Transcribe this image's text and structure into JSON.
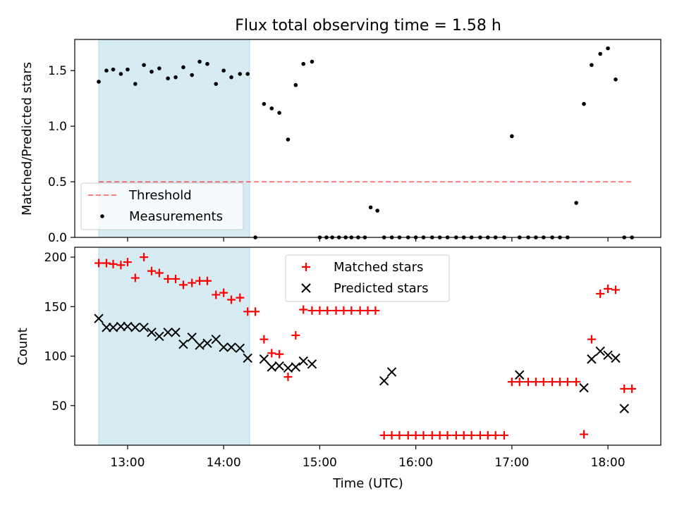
{
  "title": "Flux total observing time = 1.58 h",
  "colors": {
    "shade": "#add8e6",
    "threshold": "#ff0000",
    "matched": "#ff0000",
    "predicted": "#000000",
    "measurements": "#000000"
  },
  "chart_data": [
    {
      "type": "scatter",
      "ylabel": "Matched/Predicted stars",
      "xlim": [
        12.45,
        18.55
      ],
      "ylim": [
        0,
        1.78
      ],
      "yticks": [
        0.0,
        0.5,
        1.0,
        1.5
      ],
      "ytick_labels": [
        "0.0",
        "0.5",
        "1.0",
        "1.5"
      ],
      "xticks": [
        13,
        14,
        15,
        16,
        17,
        18
      ],
      "shaded_span": [
        12.7,
        14.27
      ],
      "legend": {
        "placement": "lower-left",
        "entries": [
          "Threshold",
          "Measurements"
        ]
      },
      "threshold": {
        "name": "Threshold",
        "x": [
          12.7,
          18.27
        ],
        "y": 0.5
      },
      "series": [
        {
          "name": "Measurements",
          "marker": "dot",
          "x": [
            12.7,
            12.78,
            12.85,
            12.93,
            13.0,
            13.08,
            13.17,
            13.25,
            13.33,
            13.42,
            13.5,
            13.58,
            13.67,
            13.75,
            13.83,
            13.92,
            14.0,
            14.08,
            14.17,
            14.25,
            14.33,
            14.42,
            14.5,
            14.58,
            14.67,
            14.75,
            14.83,
            14.92,
            15.0,
            15.07,
            15.13,
            15.2,
            15.27,
            15.33,
            15.4,
            15.47,
            15.53,
            15.6,
            15.67,
            15.75,
            15.83,
            15.92,
            16.0,
            16.08,
            16.17,
            16.25,
            16.33,
            16.42,
            16.5,
            16.58,
            16.67,
            16.75,
            16.83,
            16.92,
            17.0,
            17.08,
            17.17,
            17.25,
            17.33,
            17.42,
            17.5,
            17.58,
            17.67,
            17.75,
            17.83,
            17.92,
            18.0,
            18.08,
            18.17,
            18.25
          ],
          "y": [
            1.4,
            1.5,
            1.51,
            1.47,
            1.51,
            1.38,
            1.55,
            1.49,
            1.52,
            1.43,
            1.44,
            1.53,
            1.46,
            1.58,
            1.56,
            1.38,
            1.5,
            1.44,
            1.47,
            1.47,
            0.0,
            1.2,
            1.16,
            1.12,
            0.88,
            1.37,
            1.56,
            1.58,
            0.0,
            0.0,
            0.0,
            0.0,
            0.0,
            0.0,
            0.0,
            0.0,
            0.27,
            0.24,
            0.0,
            0.0,
            0.0,
            0.0,
            0.0,
            0.0,
            0.0,
            0.0,
            0.0,
            0.0,
            0.0,
            0.0,
            0.0,
            0.0,
            0.0,
            0.0,
            0.91,
            0.0,
            0.0,
            0.0,
            0.0,
            0.0,
            0.0,
            0.0,
            0.31,
            1.2,
            1.55,
            1.65,
            1.7,
            1.42,
            0.0,
            0.0
          ]
        }
      ]
    },
    {
      "type": "scatter",
      "xlabel": "Time (UTC)",
      "ylabel": "Count",
      "xlim": [
        12.45,
        18.55
      ],
      "ylim": [
        10,
        210
      ],
      "yticks": [
        50,
        100,
        150,
        200
      ],
      "ytick_labels": [
        "50",
        "100",
        "150",
        "200"
      ],
      "xticks": [
        13,
        14,
        15,
        16,
        17,
        18
      ],
      "xtick_labels": [
        "13:00",
        "14:00",
        "15:00",
        "16:00",
        "17:00",
        "18:00"
      ],
      "shaded_span": [
        12.7,
        14.27
      ],
      "legend": {
        "placement": "upper-center",
        "entries": [
          "Matched stars",
          "Predicted stars"
        ]
      },
      "series": [
        {
          "name": "Matched stars",
          "marker": "plus",
          "x": [
            12.7,
            12.78,
            12.85,
            12.93,
            13.0,
            13.08,
            13.17,
            13.25,
            13.33,
            13.42,
            13.5,
            13.58,
            13.67,
            13.75,
            13.83,
            13.92,
            14.0,
            14.08,
            14.17,
            14.25,
            14.33,
            14.42,
            14.5,
            14.58,
            14.67,
            14.75,
            14.83,
            14.92,
            15.0,
            15.08,
            15.17,
            15.25,
            15.33,
            15.42,
            15.5,
            15.58,
            15.67,
            15.75,
            15.83,
            15.92,
            16.0,
            16.08,
            16.17,
            16.25,
            16.33,
            16.42,
            16.5,
            16.58,
            16.67,
            16.75,
            16.83,
            16.92,
            17.0,
            17.08,
            17.17,
            17.25,
            17.33,
            17.42,
            17.5,
            17.58,
            17.67,
            17.75,
            17.83,
            17.92,
            18.0,
            18.08,
            18.17,
            18.25
          ],
          "y": [
            194,
            194,
            193,
            192,
            195,
            179,
            200,
            186,
            184,
            178,
            178,
            172,
            174,
            176,
            176,
            162,
            164,
            157,
            159,
            145,
            145,
            117,
            103,
            102,
            79,
            121,
            147,
            146,
            146,
            146,
            146,
            146,
            146,
            146,
            146,
            146,
            20,
            20,
            20,
            20,
            20,
            20,
            20,
            20,
            20,
            20,
            20,
            20,
            20,
            20,
            20,
            20,
            74,
            74,
            74,
            74,
            74,
            74,
            74,
            74,
            74,
            21,
            117,
            163,
            168,
            167,
            67,
            67
          ]
        },
        {
          "name": "Predicted stars",
          "marker": "x",
          "x": [
            12.7,
            12.78,
            12.85,
            12.93,
            13.0,
            13.08,
            13.17,
            13.25,
            13.33,
            13.42,
            13.5,
            13.58,
            13.67,
            13.75,
            13.83,
            13.92,
            14.0,
            14.08,
            14.17,
            14.25,
            14.42,
            14.5,
            14.58,
            14.67,
            14.75,
            14.83,
            14.92,
            15.67,
            15.75,
            17.08,
            17.75,
            17.83,
            17.92,
            18.0,
            18.08,
            18.17
          ],
          "y": [
            138,
            129,
            129,
            130,
            130,
            129,
            129,
            124,
            120,
            124,
            124,
            112,
            119,
            111,
            113,
            117,
            109,
            109,
            108,
            98,
            97,
            89,
            90,
            88,
            89,
            95,
            92,
            75,
            84,
            81,
            68,
            97,
            105,
            101,
            98,
            47
          ]
        }
      ]
    }
  ]
}
